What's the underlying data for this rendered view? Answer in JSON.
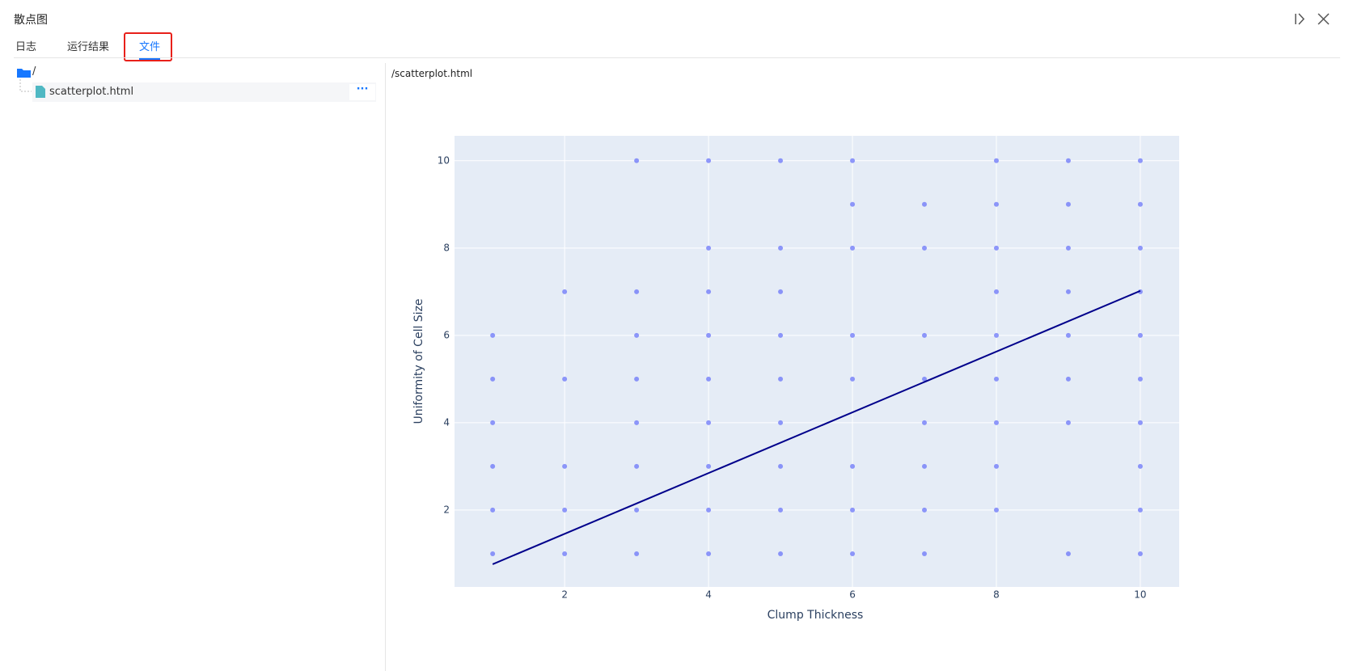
{
  "header": {
    "title": "散点图"
  },
  "tabs": {
    "items": [
      "日志",
      "运行结果",
      "文件"
    ],
    "active": 2
  },
  "file_tree": {
    "root": "/",
    "files": [
      "scatterplot.html"
    ]
  },
  "viewer": {
    "path": "/scatterplot.html"
  },
  "chart_data": {
    "type": "scatter",
    "x_label": "Clump Thickness",
    "y_label": "Uniformity of Cell Size",
    "xlim": [
      0.47,
      10.54
    ],
    "ylim": [
      0.24,
      10.57
    ],
    "xticks": [
      2,
      4,
      6,
      8,
      10
    ],
    "yticks": [
      2,
      4,
      6,
      8,
      10
    ],
    "grid": true,
    "series": [
      {
        "mode": "markers",
        "color": "#636efa",
        "x": [
          1,
          1,
          1,
          1,
          1,
          1,
          2,
          2,
          2,
          2,
          2,
          3,
          3,
          3,
          3,
          3,
          3,
          3,
          3,
          4,
          4,
          4,
          4,
          4,
          4,
          4,
          4,
          4,
          5,
          5,
          5,
          5,
          5,
          5,
          5,
          5,
          5,
          6,
          6,
          6,
          6,
          6,
          6,
          6,
          6,
          7,
          7,
          7,
          7,
          7,
          7,
          7,
          7,
          8,
          8,
          8,
          8,
          8,
          8,
          8,
          8,
          8,
          9,
          9,
          9,
          9,
          9,
          9,
          9,
          9,
          10,
          10,
          10,
          10,
          10,
          10,
          10,
          10,
          10,
          10
        ],
        "values": [
          6,
          5,
          4,
          3,
          2,
          1,
          7,
          5,
          3,
          2,
          1,
          10,
          7,
          6,
          5,
          4,
          3,
          2,
          1,
          10,
          8,
          7,
          6,
          5,
          4,
          3,
          2,
          1,
          10,
          8,
          7,
          6,
          5,
          4,
          3,
          2,
          1,
          10,
          9,
          8,
          6,
          5,
          3,
          2,
          1,
          9,
          8,
          6,
          5,
          4,
          3,
          2,
          1,
          10,
          9,
          8,
          7,
          6,
          5,
          4,
          3,
          2,
          10,
          9,
          8,
          7,
          6,
          5,
          4,
          1,
          10,
          9,
          8,
          7,
          6,
          5,
          4,
          3,
          2,
          1
        ]
      },
      {
        "mode": "lines",
        "color": "#00008b",
        "x": [
          1,
          10
        ],
        "values": [
          0.76,
          7.02
        ]
      }
    ]
  }
}
